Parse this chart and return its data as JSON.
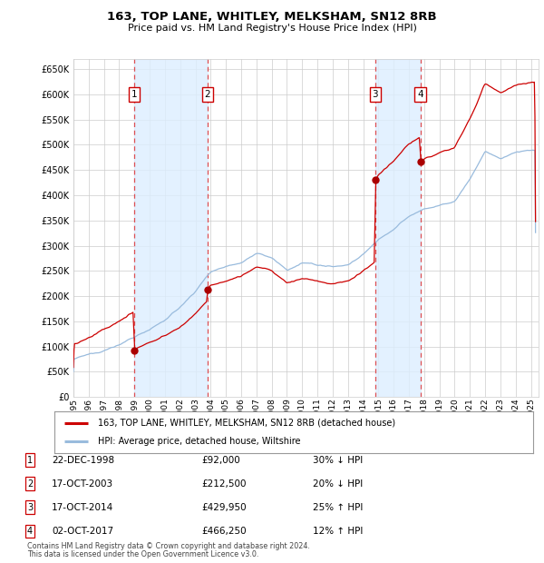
{
  "title": "163, TOP LANE, WHITLEY, MELKSHAM, SN12 8RB",
  "subtitle": "Price paid vs. HM Land Registry's House Price Index (HPI)",
  "ylim": [
    0,
    670000
  ],
  "yticks": [
    0,
    50000,
    100000,
    150000,
    200000,
    250000,
    300000,
    350000,
    400000,
    450000,
    500000,
    550000,
    600000,
    650000
  ],
  "xlim_start": 1995.0,
  "xlim_end": 2025.5,
  "xtick_years": [
    1995,
    1996,
    1997,
    1998,
    1999,
    2000,
    2001,
    2002,
    2003,
    2004,
    2005,
    2006,
    2007,
    2008,
    2009,
    2010,
    2011,
    2012,
    2013,
    2014,
    2015,
    2016,
    2017,
    2018,
    2019,
    2020,
    2021,
    2022,
    2023,
    2024,
    2025
  ],
  "transactions": [
    {
      "label": "1",
      "date": 1998.97,
      "price": 92000,
      "year_str": "22-DEC-1998",
      "price_str": "£92,000",
      "hpi_rel": "30% ↓ HPI"
    },
    {
      "label": "2",
      "date": 2003.79,
      "price": 212500,
      "year_str": "17-OCT-2003",
      "price_str": "£212,500",
      "hpi_rel": "20% ↓ HPI"
    },
    {
      "label": "3",
      "date": 2014.79,
      "price": 429950,
      "year_str": "17-OCT-2014",
      "price_str": "£429,950",
      "hpi_rel": "25% ↑ HPI"
    },
    {
      "label": "4",
      "date": 2017.75,
      "price": 466250,
      "year_str": "02-OCT-2017",
      "price_str": "£466,250",
      "hpi_rel": "12% ↑ HPI"
    }
  ],
  "legend_line1": "163, TOP LANE, WHITLEY, MELKSHAM, SN12 8RB (detached house)",
  "legend_line2": "HPI: Average price, detached house, Wiltshire",
  "footer1": "Contains HM Land Registry data © Crown copyright and database right 2024.",
  "footer2": "This data is licensed under the Open Government Licence v3.0.",
  "price_line_color": "#cc0000",
  "hpi_line_color": "#99bbdd",
  "dashed_line_color": "#dd3333",
  "shading_color": "#ddeeff",
  "dot_color": "#aa0000",
  "box_edge_color": "#cc0000",
  "background_color": "#ffffff",
  "grid_color": "#cccccc"
}
